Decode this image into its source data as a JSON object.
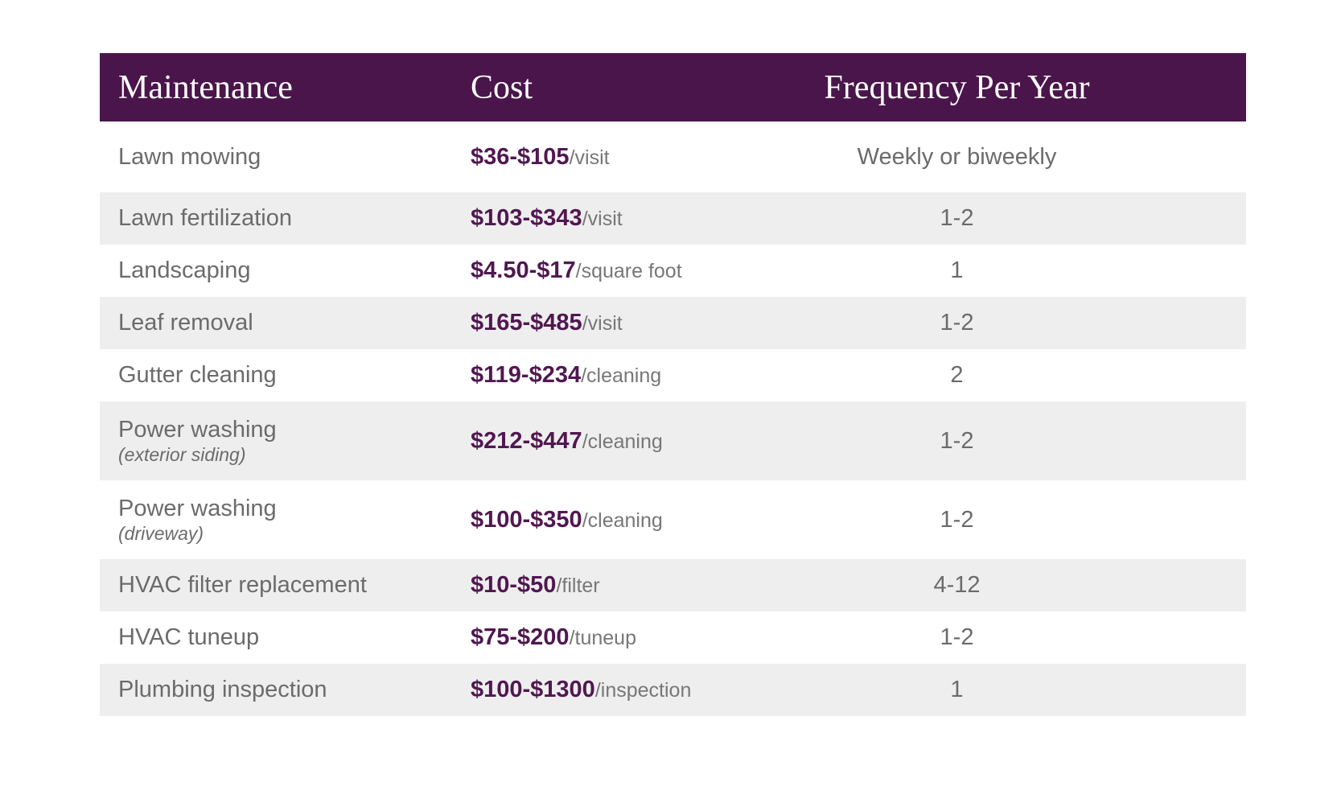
{
  "chart_data": {
    "type": "table",
    "columns": [
      "Maintenance",
      "Cost",
      "Frequency Per Year"
    ],
    "rows": [
      {
        "maintenance": "Lawn mowing",
        "sublabel": "",
        "price": "$36-$105",
        "unit": "/visit",
        "frequency": "Weekly or biweekly"
      },
      {
        "maintenance": "Lawn fertilization",
        "sublabel": "",
        "price": "$103-$343",
        "unit": "/visit",
        "frequency": "1-2"
      },
      {
        "maintenance": "Landscaping",
        "sublabel": "",
        "price": "$4.50-$17",
        "unit": "/square foot",
        "frequency": "1"
      },
      {
        "maintenance": "Leaf removal",
        "sublabel": "",
        "price": "$165-$485",
        "unit": "/visit",
        "frequency": "1-2"
      },
      {
        "maintenance": "Gutter cleaning",
        "sublabel": "",
        "price": "$119-$234",
        "unit": "/cleaning",
        "frequency": "2"
      },
      {
        "maintenance": "Power washing",
        "sublabel": "(exterior siding)",
        "price": "$212-$447",
        "unit": "/cleaning",
        "frequency": "1-2"
      },
      {
        "maintenance": "Power washing",
        "sublabel": "(driveway)",
        "price": "$100-$350",
        "unit": "/cleaning",
        "frequency": "1-2"
      },
      {
        "maintenance": "HVAC filter replacement",
        "sublabel": "",
        "price": "$10-$50",
        "unit": "/filter",
        "frequency": "4-12"
      },
      {
        "maintenance": "HVAC tuneup",
        "sublabel": "",
        "price": "$75-$200",
        "unit": "/tuneup",
        "frequency": "1-2"
      },
      {
        "maintenance": "Plumbing inspection",
        "sublabel": "",
        "price": "$100-$1300",
        "unit": "/inspection",
        "frequency": "1"
      }
    ],
    "layout": {
      "zebra_striping": true,
      "stripe_rows": "even rows (2,4,6,8,10)"
    }
  },
  "colors": {
    "header_background": "#4a154b",
    "header_text": "#ffffff",
    "price_text": "#511751",
    "body_text": "#6b6b6b",
    "unit_text": "#777777",
    "stripe_row_background": "#eeeeee",
    "page_background": "#ffffff"
  }
}
